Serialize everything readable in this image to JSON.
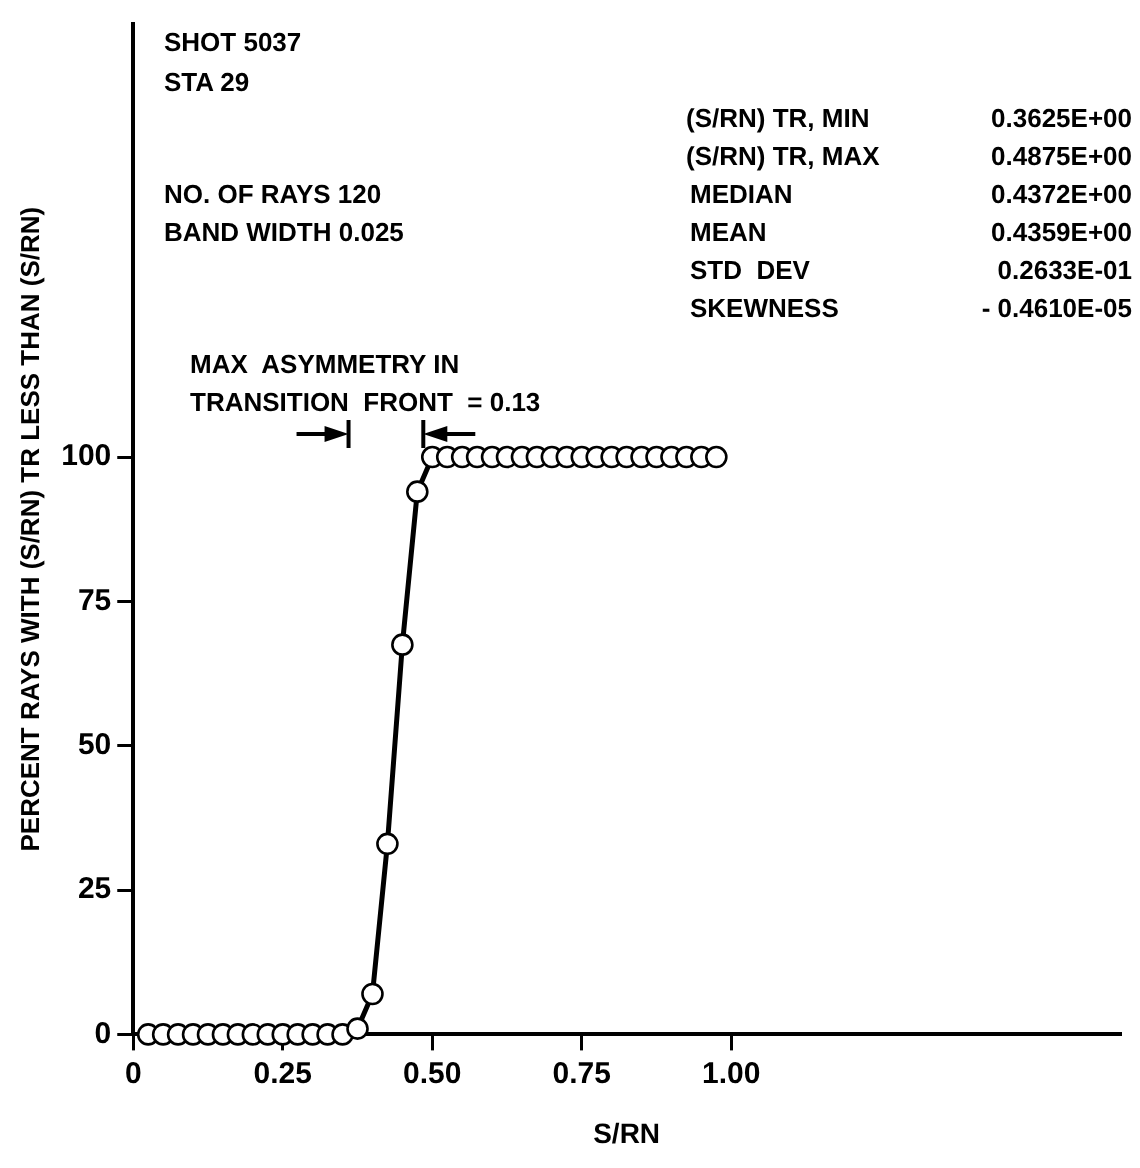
{
  "chart_data": {
    "type": "line",
    "xlabel": "S/RN",
    "ylabel": "PERCENT RAYS WITH (S/RN) TR LESS THAN (S/RN)",
    "x": [
      0.025,
      0.05,
      0.075,
      0.1,
      0.125,
      0.15,
      0.175,
      0.2,
      0.225,
      0.25,
      0.275,
      0.3,
      0.325,
      0.35,
      0.375,
      0.4,
      0.425,
      0.45,
      0.475,
      0.5,
      0.525,
      0.55,
      0.575,
      0.6,
      0.625,
      0.65,
      0.675,
      0.7,
      0.725,
      0.75,
      0.775,
      0.8,
      0.825,
      0.85,
      0.875,
      0.9,
      0.925,
      0.95,
      0.975
    ],
    "series": [
      {
        "color": "#000000",
        "values": [
          0,
          0,
          0,
          0,
          0,
          0,
          0,
          0,
          0,
          0,
          0,
          0,
          0,
          0,
          1,
          7,
          33,
          67.5,
          94,
          100,
          100,
          100,
          100,
          100,
          100,
          100,
          100,
          100,
          100,
          100,
          100,
          100,
          100,
          100,
          100,
          100,
          100,
          100,
          100
        ]
      }
    ],
    "xlim": [
      0,
      1.65
    ],
    "ylim": [
      0,
      175
    ],
    "xticks": [
      0,
      {
        "value": 0.25,
        "label": "0.25"
      },
      {
        "value": 0.5,
        "label": "0.50"
      },
      {
        "value": 0.75,
        "label": "0.75"
      },
      {
        "value": 1,
        "label": "1.00"
      }
    ],
    "yticks": [
      0,
      25,
      50,
      75,
      100
    ],
    "grid": false,
    "legend": false,
    "marker": "circle",
    "line_style": "solid",
    "annotations": [
      "SHOT 5037",
      "STA 29",
      "NO. OF RAYS 120",
      "BAND WIDTH 0.025",
      "(S/RN) TR, MIN",
      "0.3625E+00",
      "(S/RN) TR, MAX",
      "0.4875E+00",
      "MEDIAN",
      "0.4372E+00",
      "MEAN",
      "0.4359E+00",
      "STD  DEV",
      "0.2633E-01",
      "SKEWNESS",
      "- 0.4610E-05",
      "MAX  ASYMMETRY IN",
      "TRANSITION  FRONT  = 0.13"
    ]
  }
}
